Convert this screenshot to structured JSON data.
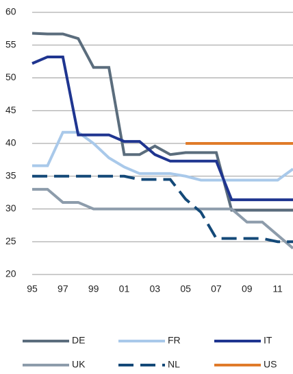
{
  "chart_data": {
    "type": "line",
    "categories": [
      "95",
      null,
      "97",
      null,
      "99",
      null,
      "01",
      null,
      "03",
      null,
      "05",
      null,
      "07",
      null,
      "09",
      null,
      "11",
      null
    ],
    "series": [
      {
        "name": "DE",
        "color": "#5b6d7d",
        "values": [
          56.8,
          56.7,
          56.7,
          56.0,
          51.6,
          51.6,
          38.3,
          38.3,
          39.6,
          38.3,
          38.6,
          38.6,
          38.6,
          29.8,
          29.8,
          29.8,
          29.8,
          29.8
        ]
      },
      {
        "name": "FR",
        "color": "#a9c9ea",
        "values": [
          36.6,
          36.6,
          41.7,
          41.7,
          40.0,
          37.8,
          36.4,
          35.4,
          35.4,
          35.4,
          35.0,
          34.4,
          34.4,
          34.4,
          34.4,
          34.4,
          34.4,
          36.1
        ]
      },
      {
        "name": "IT",
        "color": "#1f3590",
        "values": [
          52.2,
          53.2,
          53.2,
          41.3,
          41.3,
          41.3,
          40.3,
          40.3,
          38.3,
          37.3,
          37.3,
          37.3,
          37.3,
          31.4,
          31.4,
          31.4,
          31.4,
          31.4
        ]
      },
      {
        "name": "UK",
        "color": "#8d9cab",
        "values": [
          33,
          33,
          31,
          31,
          30,
          30,
          30,
          30,
          30,
          30,
          30,
          30,
          30,
          30,
          28,
          28,
          26,
          24
        ]
      },
      {
        "name": "NL",
        "color": "#144978",
        "dashed": true,
        "values": [
          35,
          35,
          35,
          35,
          35,
          35,
          35,
          34.5,
          34.5,
          34.5,
          31.5,
          29.5,
          25.5,
          25.5,
          25.5,
          25.5,
          25,
          25
        ]
      },
      {
        "name": "US",
        "color": "#e07b2a",
        "values": [
          null,
          null,
          null,
          null,
          null,
          null,
          null,
          null,
          null,
          null,
          40,
          40,
          40,
          40,
          40,
          40,
          40,
          40
        ]
      }
    ],
    "ylim": [
      20,
      60
    ],
    "yticks": [
      20,
      25,
      30,
      35,
      40,
      45,
      50,
      55,
      60
    ],
    "grid": true
  }
}
